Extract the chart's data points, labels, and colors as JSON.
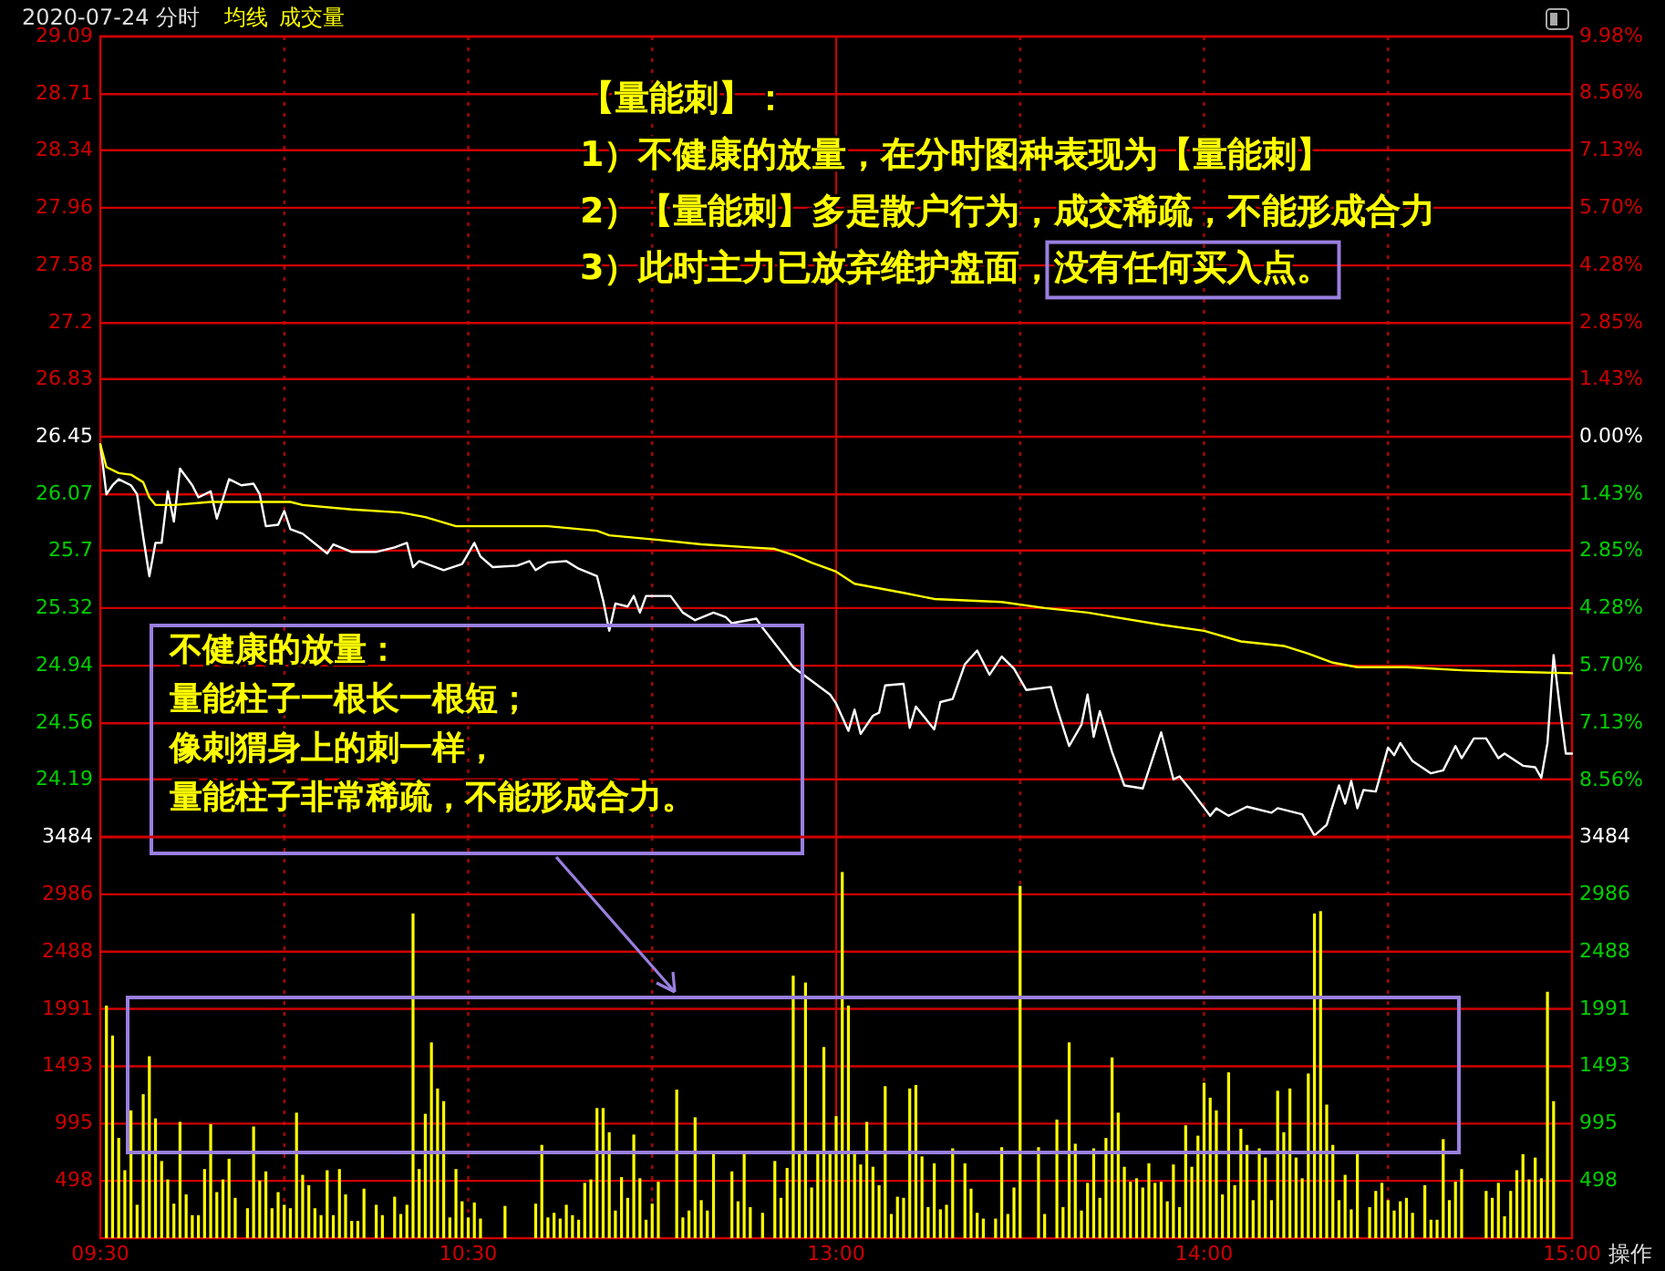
{
  "chart_data": [
    {
      "type": "line",
      "title": "2020-07-24 分时",
      "categories": [
        null,
        null,
        null,
        null,
        null,
        null,
        null,
        null,
        null,
        null,
        null,
        null,
        null,
        null,
        null,
        null,
        null,
        null,
        null,
        null,
        null,
        null,
        null,
        null,
        null,
        null,
        null,
        null,
        null,
        null,
        null,
        null,
        null,
        null,
        null,
        null,
        null,
        null,
        null,
        null,
        null,
        null,
        null,
        null,
        null,
        null,
        null,
        null,
        null,
        null,
        null,
        null,
        null,
        null,
        null,
        null,
        null,
        null,
        null,
        null,
        null,
        null,
        null,
        null,
        null,
        null,
        null,
        null,
        null,
        null,
        null,
        null,
        null,
        null,
        null,
        null,
        null,
        null,
        null,
        null,
        null,
        null,
        null,
        null,
        null,
        null,
        null,
        null,
        null,
        null,
        null,
        null,
        null,
        null,
        null,
        null,
        null,
        null,
        null,
        null,
        null,
        null,
        null,
        null,
        null,
        null,
        null,
        null,
        null,
        null,
        null,
        null,
        null,
        null,
        null,
        null,
        null,
        null,
        null,
        null,
        null,
        null,
        null,
        null,
        null,
        null,
        null,
        null,
        null,
        null,
        null,
        null,
        null,
        null,
        null,
        null,
        null,
        null,
        null,
        null,
        null,
        null,
        null,
        null,
        null,
        null,
        null,
        null,
        null,
        null,
        null,
        null,
        null,
        null,
        null,
        null,
        null,
        null,
        null,
        null,
        null,
        null,
        null,
        null,
        null,
        null,
        null,
        null,
        null,
        null,
        null,
        null,
        null,
        null,
        null,
        null,
        null,
        null,
        null,
        null,
        null,
        null,
        null,
        null,
        null,
        null,
        null,
        null,
        null,
        null,
        null,
        null,
        null,
        null,
        null,
        null,
        null,
        null,
        null,
        null,
        null,
        null,
        null,
        null,
        null,
        null,
        null,
        null,
        null,
        null,
        null,
        null,
        null,
        null,
        null,
        null,
        null,
        null,
        null,
        null,
        null,
        null,
        null,
        null,
        null,
        null,
        null,
        null,
        null,
        null,
        null,
        null,
        null,
        null,
        null,
        null,
        null,
        null,
        null,
        null,
        null
      ],
      "ylim": [
        23.81,
        29.09
      ],
      "yticks": [
        29.09,
        28.71,
        28.34,
        27.96,
        27.58,
        27.2,
        26.83,
        26.45,
        26.07,
        25.7,
        25.32,
        24.94,
        24.56,
        24.19
      ],
      "y2lim": [
        -9.98,
        9.98
      ],
      "y2ticks": [
        {
          "value": 9.98,
          "label": "9.98%"
        },
        {
          "value": 8.56,
          "label": "8.56%"
        },
        {
          "value": 7.13,
          "label": "7.13%"
        },
        {
          "value": 5.7,
          "label": "5.70%"
        },
        {
          "value": 4.28,
          "label": "4.28%"
        },
        {
          "value": 2.85,
          "label": "2.85%"
        },
        {
          "value": 1.43,
          "label": "1.43%"
        },
        {
          "value": 0,
          "label": "0.00%"
        },
        {
          "value": -1.43,
          "label": "1.43%"
        },
        {
          "value": -2.85,
          "label": "2.85%"
        },
        {
          "value": -4.28,
          "label": "4.28%"
        },
        {
          "value": -5.7,
          "label": "5.70%"
        },
        {
          "value": -7.13,
          "label": "7.13%"
        },
        {
          "value": -8.56,
          "label": "8.56%"
        }
      ],
      "grid": true,
      "tick_labels": "y",
      "legend": "top left",
      "series": [
        {
          "color": "#ffffff",
          "values": [
            26.4,
            26.07,
            26.13,
            26.17,
            null,
            26.13,
            26.07,
            25.79,
            25.53,
            25.75,
            25.75,
            26.09,
            25.89,
            26.24,
            null,
            26.13,
            26.05,
            null,
            26.09,
            25.91,
            null,
            26.17,
            null,
            26.13,
            null,
            26.14,
            26.07,
            25.86,
            null,
            25.87,
            25.96,
            25.84,
            null,
            25.81,
            null,
            null,
            null,
            25.68,
            25.74,
            null,
            null,
            25.69,
            null,
            null,
            null,
            25.69,
            null,
            null,
            25.72,
            null,
            25.75,
            25.59,
            25.63,
            null,
            null,
            null,
            25.57,
            null,
            null,
            25.61,
            null,
            25.75,
            25.66,
            null,
            25.59,
            null,
            null,
            null,
            25.6,
            null,
            25.63,
            25.57,
            null,
            25.62,
            null,
            null,
            25.63,
            null,
            25.58,
            null,
            null,
            25.53,
            25.37,
            25.17,
            25.35,
            null,
            25.33,
            25.4,
            25.29,
            25.4,
            null,
            null,
            null,
            25.4,
            null,
            25.29,
            null,
            25.24,
            null,
            null,
            25.29,
            null,
            25.26,
            25.22,
            null,
            null,
            null,
            25.25,
            25.19,
            null,
            null,
            null,
            null,
            24.93,
            null,
            null,
            null,
            null,
            null,
            24.75,
            24.69,
            null,
            24.51,
            24.65,
            24.49,
            null,
            24.61,
            24.63,
            24.81,
            null,
            null,
            24.82,
            24.53,
            24.67,
            null,
            null,
            24.52,
            24.7,
            null,
            24.72,
            null,
            24.95,
            null,
            25.04,
            null,
            24.88,
            null,
            25.0,
            null,
            24.92,
            null,
            24.78,
            null,
            null,
            null,
            24.8,
            24.66,
            null,
            24.41,
            null,
            24.55,
            24.75,
            24.47,
            24.64,
            null,
            24.37,
            null,
            24.15,
            null,
            null,
            24.13,
            null,
            null,
            24.5,
            null,
            24.19,
            24.21,
            null,
            24.11,
            null,
            null,
            23.95,
            24.0,
            null,
            23.95,
            null,
            null,
            24.01,
            null,
            null,
            null,
            23.97,
            24.0,
            null,
            null,
            null,
            23.96,
            null,
            23.82,
            null,
            23.89,
            null,
            24.15,
            24.03,
            24.18,
            24.0,
            24.12,
            null,
            24.11,
            null,
            24.4,
            24.35,
            24.43,
            null,
            24.31,
            null,
            null,
            24.23,
            null,
            24.25,
            null,
            24.41,
            24.33,
            null,
            24.46,
            null,
            24.46,
            null,
            24.33,
            24.36,
            null,
            null,
            24.28,
            null,
            24.27,
            24.2,
            24.43,
            25.01,
            24.67,
            24.36,
            24.36
          ]
        },
        {
          "name": "均线",
          "color": "#ffff00",
          "values": [
            26.4,
            26.25,
            null,
            26.21,
            null,
            26.2,
            null,
            26.15,
            26.05,
            26.0,
            null,
            null,
            26.0,
            null,
            null,
            null,
            null,
            null,
            26.02,
            null,
            null,
            null,
            null,
            null,
            null,
            null,
            null,
            null,
            null,
            null,
            null,
            26.02,
            null,
            26.0,
            null,
            null,
            null,
            null,
            null,
            null,
            null,
            25.97,
            null,
            null,
            null,
            null,
            null,
            null,
            null,
            25.95,
            null,
            null,
            null,
            25.92,
            null,
            null,
            null,
            null,
            25.86,
            null,
            null,
            null,
            null,
            null,
            null,
            null,
            null,
            null,
            null,
            null,
            null,
            null,
            null,
            25.86,
            null,
            null,
            null,
            null,
            null,
            null,
            null,
            25.83,
            null,
            25.8,
            null,
            null,
            null,
            null,
            null,
            null,
            null,
            25.77,
            null,
            null,
            null,
            null,
            null,
            null,
            25.74,
            null,
            null,
            null,
            null,
            null,
            null,
            null,
            25.72,
            null,
            null,
            null,
            25.71,
            null,
            null,
            25.67,
            null,
            null,
            25.62,
            null,
            null,
            null,
            25.56,
            null,
            null,
            25.48,
            null,
            null,
            null,
            null,
            null,
            null,
            null,
            25.42,
            null,
            null,
            null,
            null,
            25.38,
            null,
            null,
            null,
            null,
            null,
            null,
            null,
            null,
            null,
            null,
            25.36,
            null,
            null,
            null,
            null,
            null,
            null,
            25.32,
            null,
            null,
            null,
            null,
            null,
            null,
            25.29,
            null,
            null,
            null,
            null,
            null,
            null,
            null,
            null,
            null,
            null,
            null,
            25.21,
            null,
            null,
            null,
            null,
            null,
            null,
            25.17,
            null,
            null,
            null,
            null,
            null,
            25.1,
            null,
            null,
            null,
            null,
            null,
            null,
            25.07,
            null,
            null,
            null,
            25.02,
            null,
            null,
            null,
            24.96,
            null,
            null,
            null,
            24.93,
            null,
            null,
            null,
            null,
            null,
            null,
            null,
            24.93,
            null,
            null,
            null,
            null,
            null,
            null,
            null,
            null,
            24.91,
            null,
            null,
            null,
            null,
            null,
            null,
            null,
            24.9,
            null,
            null,
            null,
            null,
            null,
            null,
            null,
            null,
            null,
            24.89
          ]
        }
      ],
      "annotations": [
        "【量能刺】：",
        "1）不健康的放量，在分时图种表现为【量能刺】",
        "2）【量能刺】多是散户行为，成交稀疏，不能形成合力",
        "3）此时主力已放弃维护盘面，没有任何买入点。",
        "不健康的放量：",
        "量能柱子一根长一根短；",
        "像刺猬身上的刺一样，",
        "量能柱子非常稀疏，不能形成合力。"
      ]
    },
    {
      "type": "bar",
      "categories": [
        "09:30",
        null,
        null,
        null,
        null,
        null,
        null,
        null,
        null,
        null,
        null,
        null,
        null,
        null,
        null,
        null,
        null,
        null,
        null,
        null,
        null,
        null,
        null,
        null,
        null,
        null,
        null,
        null,
        null,
        null,
        null,
        null,
        null,
        null,
        null,
        null,
        null,
        null,
        null,
        null,
        null,
        null,
        null,
        null,
        null,
        null,
        null,
        null,
        null,
        null,
        null,
        null,
        null,
        null,
        null,
        null,
        null,
        null,
        null,
        null,
        "10:30",
        null,
        null,
        null,
        null,
        null,
        null,
        null,
        null,
        null,
        null,
        null,
        null,
        null,
        null,
        null,
        null,
        null,
        null,
        null,
        null,
        null,
        null,
        null,
        null,
        null,
        null,
        null,
        null,
        null,
        null,
        null,
        null,
        null,
        null,
        null,
        null,
        null,
        null,
        null,
        null,
        null,
        null,
        null,
        null,
        null,
        null,
        null,
        null,
        null,
        null,
        null,
        null,
        null,
        null,
        null,
        null,
        null,
        null,
        null,
        "13:00",
        null,
        null,
        null,
        null,
        null,
        null,
        null,
        null,
        null,
        null,
        null,
        null,
        null,
        null,
        null,
        null,
        null,
        null,
        null,
        null,
        null,
        null,
        null,
        null,
        null,
        null,
        null,
        null,
        null,
        null,
        null,
        null,
        null,
        null,
        null,
        null,
        null,
        null,
        null,
        null,
        null,
        null,
        null,
        null,
        null,
        null,
        null,
        null,
        null,
        null,
        null,
        null,
        null,
        null,
        null,
        null,
        null,
        null,
        null,
        "14:00",
        null,
        null,
        null,
        null,
        null,
        null,
        null,
        null,
        null,
        null,
        null,
        null,
        null,
        null,
        null,
        null,
        null,
        null,
        null,
        null,
        null,
        null,
        null,
        null,
        null,
        null,
        null,
        null,
        null,
        null,
        null,
        null,
        null,
        null,
        null,
        null,
        null,
        null,
        null,
        null,
        null,
        null,
        null,
        null,
        null,
        null,
        null,
        null,
        null,
        null,
        null,
        null,
        null,
        null,
        null,
        null,
        null,
        null,
        null,
        "15:00"
      ],
      "ylim": [
        0,
        3484
      ],
      "yticks": [
        498,
        995,
        1493,
        1991,
        2488,
        2986,
        3484
      ],
      "y2lim": [
        0,
        3484
      ],
      "y2ticks": [
        498,
        995,
        1493,
        1991,
        2488,
        2986,
        3484
      ],
      "grid": true,
      "legend": "top left",
      "series": [
        {
          "name": "成交量",
          "color": "#ffff00",
          "values": [
            null,
            2020,
            1760,
            870,
            590,
            1110,
            290,
            1250,
            1580,
            1040,
            670,
            510,
            300,
            1010,
            380,
            200,
            200,
            600,
            990,
            400,
            510,
            690,
            350,
            null,
            260,
            970,
            500,
            580,
            260,
            400,
            290,
            260,
            1090,
            550,
            460,
            260,
            200,
            590,
            200,
            600,
            380,
            150,
            150,
            430,
            null,
            290,
            200,
            null,
            360,
            210,
            290,
            2820,
            600,
            1080,
            1700,
            1300,
            1190,
            180,
            600,
            320,
            180,
            310,
            170,
            null,
            null,
            null,
            280,
            null,
            null,
            null,
            null,
            300,
            810,
            180,
            220,
            170,
            290,
            200,
            160,
            480,
            510,
            1130,
            1130,
            920,
            240,
            530,
            350,
            900,
            520,
            160,
            300,
            490,
            null,
            null,
            1290,
            180,
            240,
            1050,
            330,
            240,
            730,
            null,
            null,
            580,
            320,
            730,
            270,
            null,
            220,
            null,
            670,
            350,
            610,
            2280,
            760,
            2220,
            440,
            730,
            1660,
            730,
            1060,
            3180,
            2020,
            730,
            640,
            1010,
            620,
            460,
            1320,
            210,
            360,
            350,
            1300,
            1330,
            710,
            270,
            650,
            250,
            290,
            780,
            null,
            650,
            430,
            220,
            170,
            null,
            170,
            790,
            210,
            440,
            3060,
            null,
            null,
            790,
            210,
            null,
            1030,
            270,
            1700,
            820,
            240,
            480,
            780,
            350,
            870,
            1570,
            1090,
            620,
            490,
            520,
            440,
            650,
            480,
            490,
            320,
            640,
            270,
            980,
            620,
            890,
            1350,
            1220,
            1110,
            380,
            1440,
            460,
            950,
            810,
            330,
            780,
            700,
            330,
            1280,
            920,
            1300,
            700,
            520,
            1430,
            2820,
            2840,
            1160,
            810,
            330,
            550,
            250,
            730,
            null,
            270,
            410,
            480,
            330,
            240,
            320,
            350,
            220,
            null,
            460,
            160,
            160,
            860,
            330,
            490,
            600,
            null,
            null,
            null,
            410,
            350,
            480,
            190,
            410,
            590,
            730,
            510,
            700,
            520,
            2140,
            1190,
            null,
            null,
            null
          ]
        }
      ],
      "annotations": [
        "操作"
      ]
    }
  ]
}
